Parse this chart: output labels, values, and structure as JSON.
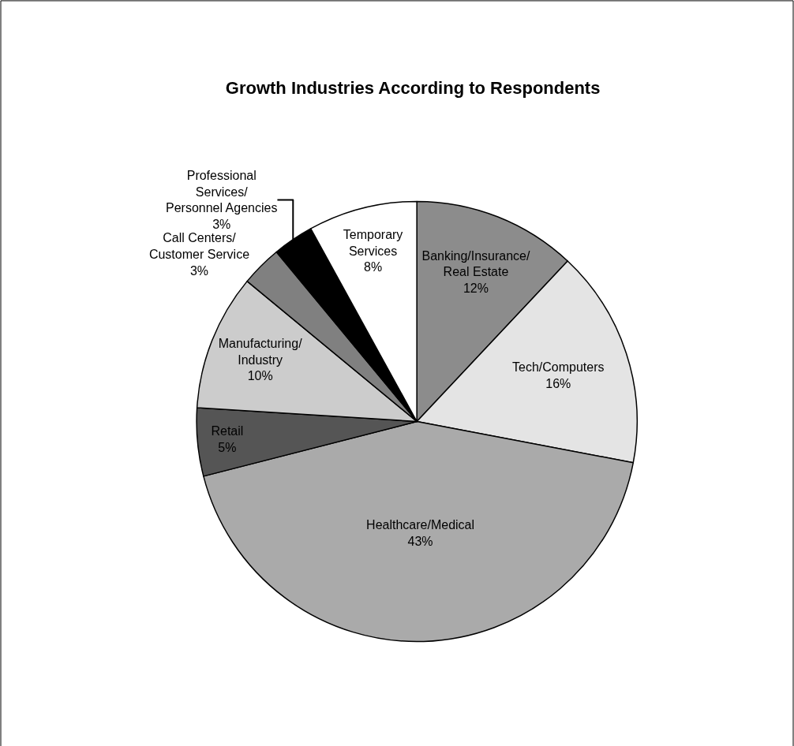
{
  "chart_data": {
    "type": "pie",
    "title": "Growth Industries According to Respondents",
    "categories": [
      "Banking/Insurance/\nReal Estate",
      "Tech/Computers",
      "Healthcare/Medical",
      "Retail",
      "Manufacturing/\nIndustry",
      "Call Centers/\nCustomer Service",
      "Professional\nServices/\nPersonnel Agencies",
      "Temporary\nServices"
    ],
    "values": [
      12,
      16,
      43,
      5,
      10,
      3,
      3,
      8
    ],
    "value_labels": [
      "12%",
      "16%",
      "43%",
      "5%",
      "10%",
      "3%",
      "3%",
      "8%"
    ],
    "colors": [
      "#8c8c8c",
      "#e4e4e4",
      "#aaaaaa",
      "#555555",
      "#cccccc",
      "#808080",
      "#000000",
      "#ffffff"
    ],
    "legend": false
  }
}
